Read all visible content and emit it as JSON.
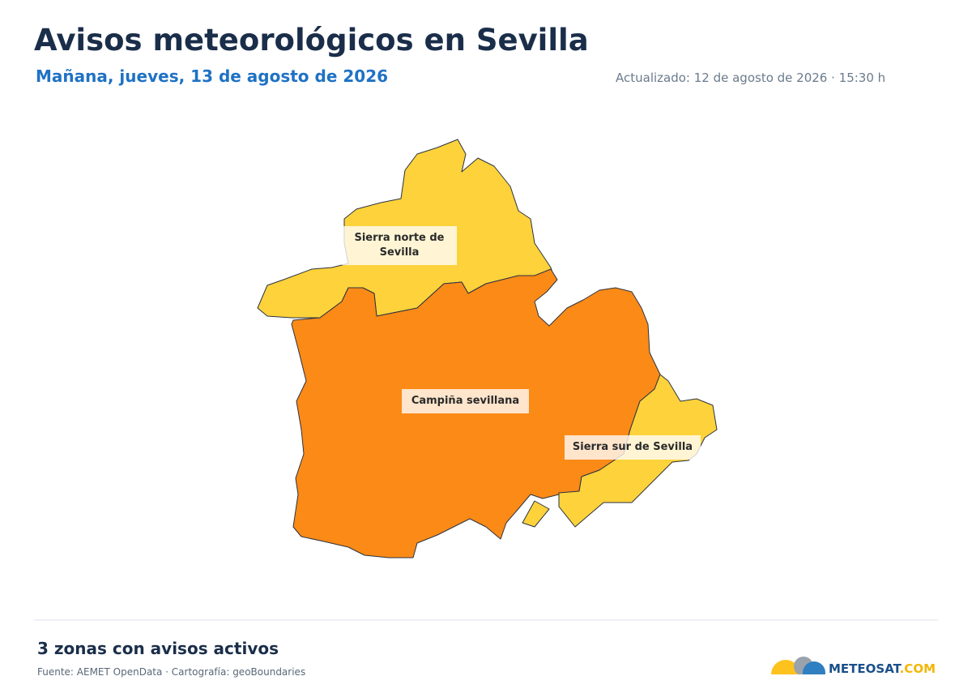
{
  "header": {
    "title": "Avisos meteorológicos en Sevilla",
    "subtitle": "Mañana, jueves, 13 de agosto de 2026",
    "updated": "Actualizado: 12 de agosto de 2026 · 15:30 h"
  },
  "zones": [
    {
      "name": "Sierra norte de Sevilla",
      "color": "#fdd23b"
    },
    {
      "name": "Campiña sevillana",
      "color": "#fb8a17"
    },
    {
      "name": "Sierra sur de Sevilla",
      "color": "#fdd23b"
    }
  ],
  "footer": {
    "summary": "3 zonas con avisos activos",
    "source": "Fuente: AEMET OpenData · Cartografía: geoBoundaries",
    "logo": [
      "METEOSAT",
      ".COM"
    ]
  }
}
